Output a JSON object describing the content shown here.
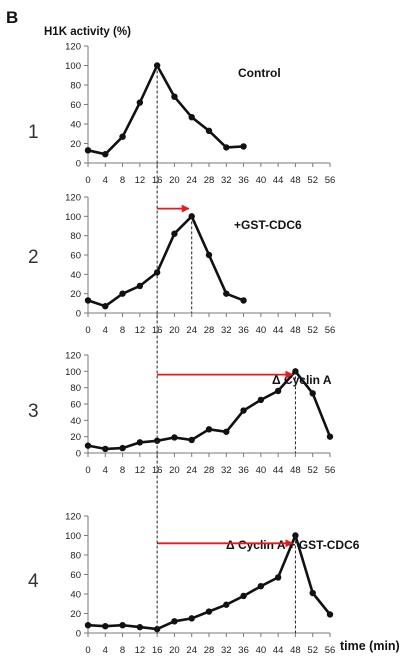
{
  "figure": {
    "panel_label": "B",
    "y_axis_title": "H1K activity  (%)",
    "x_axis_title": "time (min)",
    "peak_guide_x": 16,
    "colors": {
      "series": "#111111",
      "shift_arrow": "#e41a1c",
      "axis": "#7a7a7a"
    }
  },
  "chart_data": [
    {
      "type": "line",
      "row_label": "1",
      "annotation": "Control",
      "x_ticks": [
        0,
        4,
        8,
        12,
        16,
        20,
        24,
        28,
        32,
        36,
        40,
        44,
        48,
        52,
        56
      ],
      "y_ticks": [
        0,
        20,
        40,
        60,
        80,
        100,
        120
      ],
      "ylim": [
        0,
        120
      ],
      "xlim": [
        0,
        56
      ],
      "x": [
        0,
        4,
        8,
        12,
        16,
        20,
        24,
        28,
        32,
        36
      ],
      "y": [
        13,
        9,
        27,
        62,
        100,
        68,
        47,
        33,
        16,
        17
      ],
      "peak_x": 16,
      "shift_arrow": null
    },
    {
      "type": "line",
      "row_label": "2",
      "annotation": "+GST-CDC6",
      "x_ticks": [
        0,
        4,
        8,
        12,
        16,
        20,
        24,
        28,
        32,
        36,
        40,
        44,
        48,
        52,
        56
      ],
      "y_ticks": [
        0,
        20,
        40,
        60,
        80,
        100,
        120
      ],
      "ylim": [
        0,
        120
      ],
      "xlim": [
        0,
        56
      ],
      "x": [
        0,
        4,
        8,
        12,
        16,
        20,
        24,
        28,
        32,
        36
      ],
      "y": [
        13,
        7,
        20,
        28,
        42,
        82,
        100,
        60,
        20,
        13
      ],
      "peak_x": 24,
      "shift_arrow": {
        "from_x": 16,
        "to_x": 24,
        "y": 108
      }
    },
    {
      "type": "line",
      "row_label": "3",
      "annotation": "Δ Cyclin A",
      "x_ticks": [
        0,
        4,
        8,
        12,
        16,
        20,
        24,
        28,
        32,
        36,
        40,
        44,
        48,
        52,
        56
      ],
      "y_ticks": [
        0,
        20,
        40,
        60,
        80,
        100,
        120
      ],
      "ylim": [
        0,
        120
      ],
      "xlim": [
        0,
        56
      ],
      "x": [
        0,
        4,
        8,
        12,
        16,
        20,
        24,
        28,
        32,
        36,
        40,
        44,
        48,
        52,
        56
      ],
      "y": [
        9,
        5,
        6,
        13,
        15,
        19,
        16,
        29,
        26,
        52,
        65,
        76,
        100,
        73,
        20
      ],
      "peak_x": 48,
      "shift_arrow": {
        "from_x": 16,
        "to_x": 48,
        "y": 96
      }
    },
    {
      "type": "line",
      "row_label": "4",
      "annotation": "Δ Cyclin A + GST-CDC6",
      "x_ticks": [
        0,
        4,
        8,
        12,
        16,
        20,
        24,
        28,
        32,
        36,
        40,
        44,
        48,
        52,
        56
      ],
      "y_ticks": [
        0,
        20,
        40,
        60,
        80,
        100,
        120
      ],
      "ylim": [
        0,
        120
      ],
      "xlim": [
        0,
        56
      ],
      "x": [
        0,
        4,
        8,
        12,
        16,
        20,
        24,
        28,
        32,
        36,
        40,
        44,
        48,
        52,
        56
      ],
      "y": [
        8,
        7,
        8,
        6,
        4,
        12,
        15,
        22,
        29,
        38,
        48,
        57,
        100,
        41,
        19
      ],
      "peak_x": 48,
      "shift_arrow": {
        "from_x": 16,
        "to_x": 48,
        "y": 92
      }
    }
  ]
}
